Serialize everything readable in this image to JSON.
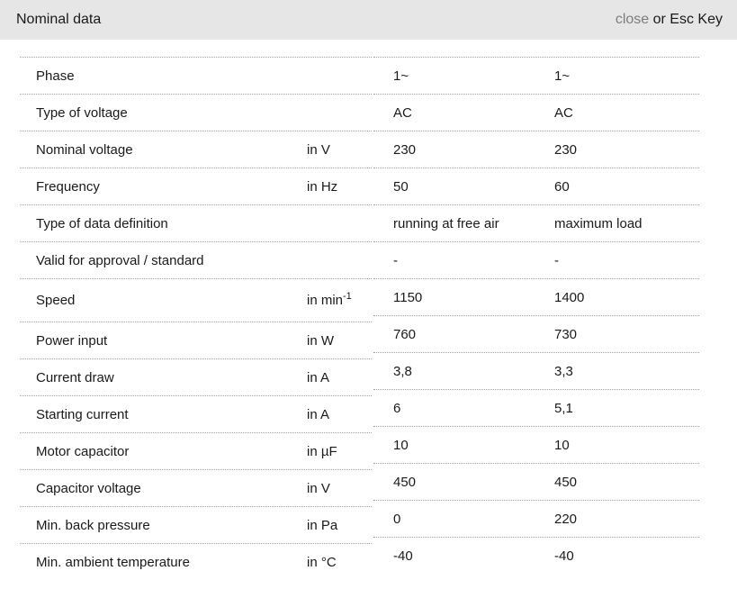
{
  "header": {
    "title": "Nominal data",
    "close_label": "close",
    "esc_hint": " or Esc Key"
  },
  "colors": {
    "header_bg": "#e6e6e6",
    "text": "#1a1a1a",
    "close_link": "#7d7d7d",
    "row_border": "#a0a0a0"
  },
  "table": {
    "rows": [
      {
        "label": "Phase",
        "unit": "",
        "unit_sup": "",
        "v1": "1~",
        "v2": "1~"
      },
      {
        "label": "Type of voltage",
        "unit": "",
        "unit_sup": "",
        "v1": "AC",
        "v2": "AC"
      },
      {
        "label": "Nominal voltage",
        "unit": "in V",
        "unit_sup": "",
        "v1": "230",
        "v2": "230"
      },
      {
        "label": "Frequency",
        "unit": "in Hz",
        "unit_sup": "",
        "v1": "50",
        "v2": "60"
      },
      {
        "label": "Type of data definition",
        "unit": "",
        "unit_sup": "",
        "v1": "running at free air",
        "v2": "maximum load"
      },
      {
        "label": "Valid for approval / standard",
        "unit": "",
        "unit_sup": "",
        "v1": "-",
        "v2": "-"
      },
      {
        "label": "Speed",
        "unit": "in min",
        "unit_sup": "-1",
        "v1": "1150",
        "v2": "1400",
        "tall_left": true
      },
      {
        "label": "Power input",
        "unit": "in W",
        "unit_sup": "",
        "v1": "760",
        "v2": "730"
      },
      {
        "label": "Current draw",
        "unit": "in A",
        "unit_sup": "",
        "v1": "3,8",
        "v2": "3,3"
      },
      {
        "label": "Starting current",
        "unit": "in A",
        "unit_sup": "",
        "v1": "6",
        "v2": "5,1"
      },
      {
        "label": "Motor capacitor",
        "unit": "in µF",
        "unit_sup": "",
        "v1": "10",
        "v2": "10"
      },
      {
        "label": "Capacitor voltage",
        "unit": "in V",
        "unit_sup": "",
        "v1": "450",
        "v2": "450"
      },
      {
        "label": "Min. back pressure",
        "unit": "in Pa",
        "unit_sup": "",
        "v1": "0",
        "v2": "220"
      },
      {
        "label": "Min. ambient temperature",
        "unit": "in °C",
        "unit_sup": "",
        "v1": "-40",
        "v2": "-40"
      }
    ]
  }
}
